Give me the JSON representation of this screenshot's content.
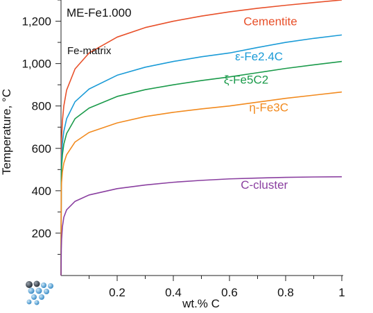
{
  "chart_data": {
    "type": "line",
    "title": "ME-Fe1.000",
    "annotation": "Fe-matrix",
    "xlabel": "wt.% C",
    "ylabel": "Temperature, °C",
    "xlim": [
      0,
      1
    ],
    "ylim": [
      0,
      1300
    ],
    "xticks": [
      {
        "value": 0.2,
        "label": "0.2"
      },
      {
        "value": 0.4,
        "label": "0.4"
      },
      {
        "value": 0.6,
        "label": "0.6"
      },
      {
        "value": 0.8,
        "label": "0.8"
      },
      {
        "value": 1.0,
        "label": "1"
      }
    ],
    "yticks": [
      {
        "value": 200,
        "label": "200"
      },
      {
        "value": 400,
        "label": "400"
      },
      {
        "value": 600,
        "label": "600"
      },
      {
        "value": 800,
        "label": "800"
      },
      {
        "value": 1000,
        "label": "1,000"
      },
      {
        "value": 1200,
        "label": "1,200"
      }
    ],
    "grid": false,
    "legend": "none",
    "x": [
      0.001,
      0.002,
      0.005,
      0.01,
      0.02,
      0.05,
      0.1,
      0.2,
      0.3,
      0.4,
      0.5,
      0.6,
      0.7,
      0.8,
      0.9,
      1.0
    ],
    "series": [
      {
        "name": "Cementite",
        "color": "#e8502a",
        "values": [
          580,
          640,
          730,
          800,
          875,
          975,
          1050,
          1125,
          1170,
          1200,
          1224,
          1244,
          1261,
          1275,
          1288,
          1300
        ]
      },
      {
        "name": "ε-Fe2.4C",
        "color": "#1a9bd7",
        "values": [
          500,
          555,
          625,
          680,
          740,
          820,
          880,
          945,
          983,
          1010,
          1032,
          1050,
          1076,
          1100,
          1119,
          1135
        ]
      },
      {
        "name": "ξ-Fe5C2",
        "color": "#1a9a4a",
        "values": [
          460,
          510,
          570,
          620,
          670,
          740,
          790,
          845,
          877,
          900,
          920,
          937,
          957,
          977,
          994,
          1010
        ]
      },
      {
        "name": "η-Fe3C",
        "color": "#f28a1e",
        "values": [
          400,
          440,
          490,
          530,
          570,
          630,
          675,
          720,
          750,
          770,
          786,
          800,
          818,
          836,
          851,
          866
        ]
      },
      {
        "name": "C-cluster",
        "color": "#8a3fa0",
        "values": [
          120,
          170,
          230,
          275,
          310,
          350,
          380,
          410,
          427,
          440,
          449,
          456,
          460,
          463,
          465,
          466
        ]
      }
    ]
  },
  "logo": {
    "name": "atom-cluster-logo-icon"
  }
}
